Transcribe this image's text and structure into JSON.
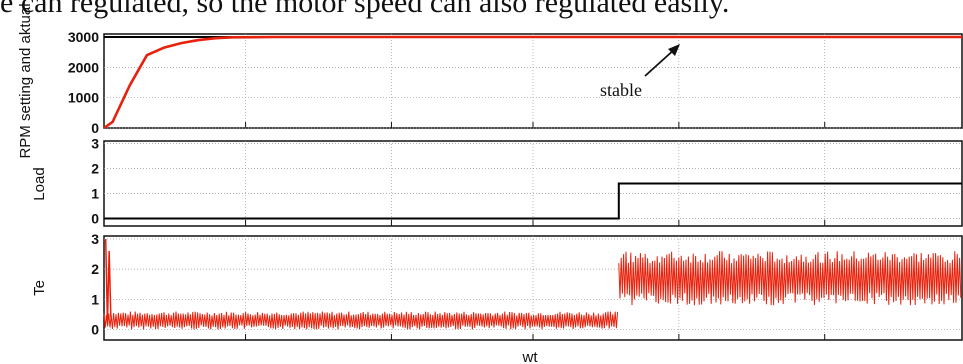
{
  "caption": "e can regulated, so the motor speed can also regulated easily.",
  "colors": {
    "signal": "#e8210c",
    "reference": "#000000",
    "grid": "#9a9a9a"
  },
  "chart_data": [
    {
      "type": "line",
      "ylabel": "RPM setting and aktual",
      "yticks": [
        0,
        1000,
        2000,
        3000
      ],
      "ylim": [
        0,
        3100
      ],
      "xlim": [
        0,
        1
      ],
      "annotation": "stable",
      "series": [
        {
          "x": [
            0,
            1
          ],
          "y": [
            3000,
            3000
          ],
          "color": "#000000"
        },
        {
          "x": [
            0,
            0.01,
            0.03,
            0.05,
            0.07,
            0.09,
            0.11,
            0.13,
            0.15,
            0.2,
            0.4,
            0.6,
            0.8,
            1.0
          ],
          "y": [
            0,
            200,
            1400,
            2400,
            2650,
            2800,
            2900,
            2960,
            2990,
            3000,
            3000,
            3000,
            3000,
            3000
          ],
          "color": "#e8210c"
        }
      ]
    },
    {
      "type": "line",
      "ylabel": "Load",
      "yticks": [
        0,
        1,
        2,
        3
      ],
      "ylim": [
        -0.3,
        3.1
      ],
      "xlim": [
        0,
        1
      ],
      "series": [
        {
          "x": [
            0,
            0.6,
            0.6,
            1.0
          ],
          "y": [
            0,
            0,
            1.4,
            1.4
          ],
          "color": "#000000"
        }
      ]
    },
    {
      "type": "line",
      "ylabel": "Te",
      "yticks": [
        0,
        1,
        2,
        3
      ],
      "ylim": [
        -0.35,
        3.1
      ],
      "xlim": [
        0,
        1
      ],
      "xlabel": "wt",
      "series": [
        {
          "segments": [
            {
              "x": [
                0,
                0.6
              ],
              "center": 0.3,
              "amplitude": 0.6
            },
            {
              "x": [
                0.6,
                1.0
              ],
              "center": 1.7,
              "amplitude": 1.8
            }
          ],
          "color": "#e8210c"
        }
      ]
    }
  ]
}
